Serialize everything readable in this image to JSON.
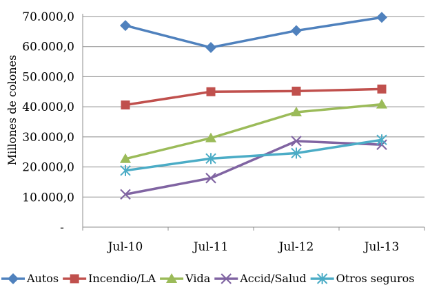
{
  "chart_data": {
    "type": "line",
    "title": "",
    "xlabel": "",
    "ylabel": "Millones de colones",
    "categories": [
      "Jul-10",
      "Jul-11",
      "Jul-12",
      "Jul-13"
    ],
    "ylim": [
      0,
      70000
    ],
    "yticks": [
      0,
      10000,
      20000,
      30000,
      40000,
      50000,
      60000,
      70000
    ],
    "ytick_labels": [
      "-",
      "10.000,0",
      "20.000,0",
      "30.000,0",
      "40.000,0",
      "50.000,0",
      "60.000,0",
      "70.000,0"
    ],
    "grid": true,
    "legend_position": "bottom",
    "series": [
      {
        "name": "Autos",
        "color": "#4f81bd",
        "marker": "diamond",
        "values": [
          67000,
          59700,
          65300,
          69700
        ]
      },
      {
        "name": "Incendio/LA",
        "color": "#c0504d",
        "marker": "square",
        "values": [
          40600,
          45000,
          45200,
          45900
        ]
      },
      {
        "name": "Vida",
        "color": "#9bbb59",
        "marker": "triangle",
        "values": [
          22700,
          29600,
          38200,
          40800
        ]
      },
      {
        "name": "Accid/Salud",
        "color": "#8064a2",
        "marker": "x",
        "values": [
          10900,
          16300,
          28600,
          27400
        ]
      },
      {
        "name": "Otros seguros",
        "color": "#4bacc6",
        "marker": "star",
        "values": [
          18800,
          22800,
          24600,
          29000
        ]
      }
    ]
  }
}
